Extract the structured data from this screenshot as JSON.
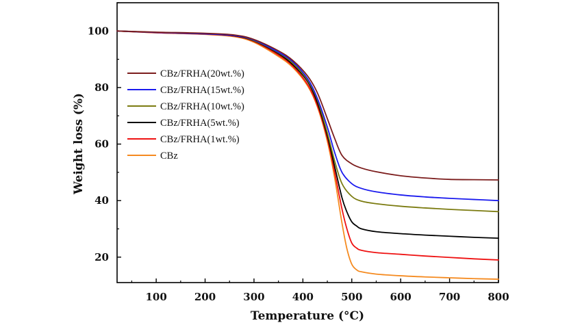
{
  "chart_data": {
    "type": "line",
    "title": "",
    "xlabel": "Temperature (°C)",
    "ylabel": "Weight loss (%)",
    "xlim": [
      20,
      800
    ],
    "ylim": [
      11,
      110
    ],
    "xticks": [
      100,
      200,
      300,
      400,
      500,
      600,
      700,
      800
    ],
    "yticks": [
      20,
      40,
      60,
      80,
      100
    ],
    "grid": false,
    "legend_position": "middle-left",
    "series": [
      {
        "name": "CBz/FRHA(20wt.%)",
        "color": "#7b1c1c",
        "x": [
          20,
          100,
          200,
          260,
          300,
          350,
          380,
          410,
          430,
          450,
          465,
          480,
          500,
          520,
          550,
          600,
          650,
          700,
          750,
          800
        ],
        "y": [
          100,
          99.6,
          99.2,
          98.6,
          97,
          93,
          89.5,
          84,
          78,
          69,
          62,
          56,
          53,
          51.5,
          50.2,
          48.8,
          48,
          47.5,
          47.4,
          47.3
        ]
      },
      {
        "name": "CBz/FRHA(15wt.%)",
        "color": "#1a1aee",
        "x": [
          20,
          100,
          200,
          260,
          300,
          350,
          380,
          410,
          430,
          450,
          465,
          480,
          500,
          520,
          550,
          600,
          650,
          700,
          750,
          800
        ],
        "y": [
          100,
          99.5,
          99,
          98.4,
          96.8,
          92.5,
          89,
          83,
          76,
          66,
          57,
          50,
          46,
          44.3,
          43.1,
          42,
          41.3,
          40.8,
          40.4,
          40
        ]
      },
      {
        "name": "CBz/FRHA(10wt.%)",
        "color": "#7b7b10",
        "x": [
          20,
          100,
          200,
          260,
          300,
          350,
          380,
          410,
          430,
          450,
          465,
          480,
          500,
          520,
          550,
          600,
          650,
          700,
          750,
          800
        ],
        "y": [
          100,
          99.5,
          99,
          98.4,
          96.6,
          92.3,
          88.5,
          82.5,
          75.5,
          64,
          54,
          46,
          41.5,
          39.8,
          38.9,
          38,
          37.4,
          36.9,
          36.5,
          36.1
        ]
      },
      {
        "name": "CBz/FRHA(5wt.%)",
        "color": "#000000",
        "x": [
          20,
          100,
          200,
          260,
          300,
          350,
          380,
          410,
          430,
          450,
          465,
          480,
          490,
          500,
          510,
          520,
          550,
          600,
          650,
          700,
          750,
          800
        ],
        "y": [
          100,
          99.5,
          99,
          98.3,
          96.5,
          92,
          88,
          82,
          74.5,
          63,
          52,
          41,
          36,
          32.5,
          31,
          30,
          29,
          28.3,
          27.8,
          27.4,
          27,
          26.7
        ]
      },
      {
        "name": "CBz/FRHA(1wt.%)",
        "color": "#ee1111",
        "x": [
          20,
          100,
          200,
          260,
          300,
          350,
          380,
          410,
          430,
          450,
          465,
          480,
          490,
          500,
          510,
          520,
          550,
          600,
          650,
          700,
          750,
          800
        ],
        "y": [
          100,
          99.4,
          98.9,
          98.2,
          96.3,
          91.5,
          87.5,
          81,
          73.5,
          62,
          50,
          37,
          30,
          25,
          23.2,
          22.4,
          21.6,
          21,
          20.4,
          19.9,
          19.4,
          19
        ]
      },
      {
        "name": "CBz",
        "color": "#f58a1f",
        "x": [
          20,
          100,
          200,
          260,
          300,
          350,
          380,
          410,
          430,
          450,
          465,
          480,
          490,
          500,
          510,
          520,
          550,
          600,
          650,
          700,
          750,
          800
        ],
        "y": [
          100,
          99.4,
          98.8,
          98,
          96,
          91,
          87,
          80.5,
          73,
          61,
          48,
          32,
          23,
          17.5,
          15.5,
          14.8,
          14,
          13.4,
          13,
          12.7,
          12.4,
          12.2
        ]
      }
    ]
  }
}
